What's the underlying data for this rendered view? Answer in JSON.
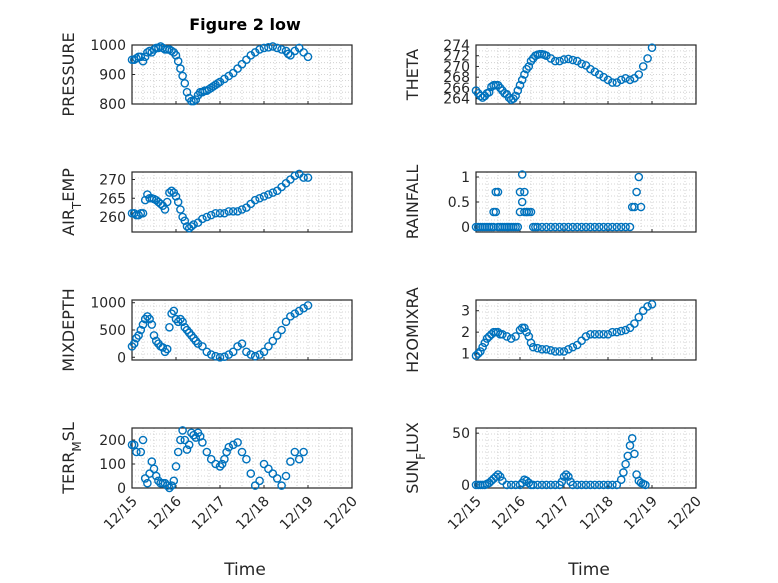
{
  "figure": {
    "title": "Figure 2 low",
    "marker_color": "#0072BD",
    "x_tick_labels": [
      "12/15",
      "12/16",
      "12/17",
      "12/18",
      "12/19",
      "12/20"
    ],
    "x_label": "Time"
  },
  "chart_data": [
    {
      "type": "scatter",
      "id": "pressure",
      "ylabel": "PRESSURE",
      "xlim": [
        0,
        5
      ],
      "ylim": [
        800,
        1000
      ],
      "yticks": [
        800,
        900,
        1000
      ],
      "xticks_shown": false,
      "title": "Figure 2 low",
      "x": [
        0.0,
        0.05,
        0.1,
        0.15,
        0.2,
        0.25,
        0.3,
        0.35,
        0.4,
        0.45,
        0.5,
        0.55,
        0.6,
        0.65,
        0.7,
        0.75,
        0.8,
        0.85,
        0.9,
        0.95,
        1.0,
        1.05,
        1.1,
        1.15,
        1.2,
        1.25,
        1.3,
        1.35,
        1.4,
        1.45,
        1.5,
        1.55,
        1.6,
        1.65,
        1.7,
        1.75,
        1.8,
        1.85,
        1.9,
        1.95,
        2.0,
        2.1,
        2.2,
        2.3,
        2.4,
        2.5,
        2.6,
        2.7,
        2.8,
        2.9,
        3.0,
        3.1,
        3.2,
        3.3,
        3.4,
        3.5,
        3.55,
        3.6,
        3.7,
        3.8,
        3.9,
        4.0
      ],
      "y": [
        950,
        950,
        955,
        960,
        960,
        945,
        960,
        975,
        980,
        975,
        985,
        990,
        990,
        995,
        990,
        985,
        985,
        985,
        980,
        975,
        965,
        945,
        920,
        895,
        870,
        840,
        820,
        810,
        810,
        815,
        830,
        840,
        840,
        845,
        845,
        850,
        855,
        860,
        865,
        870,
        875,
        885,
        895,
        905,
        920,
        935,
        950,
        965,
        975,
        985,
        990,
        992,
        995,
        990,
        985,
        980,
        970,
        965,
        980,
        990,
        975,
        960
      ]
    },
    {
      "type": "scatter",
      "id": "theta",
      "ylabel": "THETA",
      "xlim": [
        0,
        5
      ],
      "ylim": [
        263,
        274
      ],
      "yticks": [
        264,
        266,
        268,
        270,
        272,
        274
      ],
      "xticks_shown": false,
      "x": [
        0.0,
        0.05,
        0.1,
        0.15,
        0.2,
        0.25,
        0.3,
        0.35,
        0.4,
        0.45,
        0.5,
        0.55,
        0.6,
        0.65,
        0.7,
        0.75,
        0.8,
        0.85,
        0.9,
        0.95,
        1.0,
        1.05,
        1.1,
        1.15,
        1.2,
        1.25,
        1.3,
        1.35,
        1.4,
        1.45,
        1.5,
        1.55,
        1.6,
        1.7,
        1.8,
        1.9,
        2.0,
        2.1,
        2.2,
        2.3,
        2.4,
        2.5,
        2.6,
        2.7,
        2.8,
        2.9,
        3.0,
        3.1,
        3.2,
        3.3,
        3.4,
        3.5,
        3.6,
        3.7,
        3.8,
        3.9,
        4.0
      ],
      "y": [
        265.5,
        265.0,
        264.5,
        264.2,
        264.5,
        265.0,
        265.2,
        266.2,
        266.5,
        266.5,
        266.5,
        266.0,
        265.5,
        265.0,
        264.8,
        264.2,
        263.8,
        264.0,
        264.5,
        265.5,
        266.5,
        267.5,
        268.5,
        269.5,
        270.0,
        271.0,
        271.5,
        272.0,
        272.2,
        272.3,
        272.3,
        272.2,
        272.0,
        271.5,
        271.0,
        271.0,
        271.3,
        271.4,
        271.2,
        271.0,
        270.5,
        270.2,
        269.5,
        269.0,
        268.5,
        268.0,
        267.5,
        267.0,
        267.0,
        267.5,
        267.8,
        267.5,
        267.8,
        268.5,
        270.0,
        271.5,
        273.5
      ]
    },
    {
      "type": "scatter",
      "id": "air_temp",
      "ylabel": "AIR_TEMP",
      "xlim": [
        0,
        5
      ],
      "ylim": [
        256,
        272
      ],
      "yticks": [
        260,
        265,
        270
      ],
      "xticks_shown": false,
      "x": [
        0.0,
        0.05,
        0.1,
        0.15,
        0.2,
        0.25,
        0.3,
        0.35,
        0.4,
        0.45,
        0.5,
        0.55,
        0.6,
        0.65,
        0.7,
        0.75,
        0.8,
        0.85,
        0.9,
        0.95,
        1.0,
        1.05,
        1.1,
        1.15,
        1.2,
        1.25,
        1.3,
        1.35,
        1.4,
        1.5,
        1.6,
        1.7,
        1.8,
        1.9,
        2.0,
        2.1,
        2.2,
        2.3,
        2.4,
        2.5,
        2.6,
        2.7,
        2.8,
        2.9,
        3.0,
        3.1,
        3.2,
        3.3,
        3.4,
        3.5,
        3.6,
        3.7,
        3.8,
        3.9,
        4.0
      ],
      "y": [
        261.0,
        261.0,
        260.5,
        260.5,
        261.0,
        261.0,
        264.5,
        266.0,
        265.0,
        265.0,
        264.8,
        264.5,
        264.0,
        263.5,
        263.0,
        262.0,
        264.0,
        266.5,
        267.0,
        266.5,
        265.5,
        264.0,
        262.0,
        260.0,
        259.0,
        257.5,
        257.0,
        257.5,
        258.0,
        258.5,
        259.5,
        260.0,
        260.5,
        261.0,
        261.0,
        261.0,
        261.5,
        261.5,
        261.5,
        262.0,
        262.5,
        263.5,
        264.5,
        265.0,
        265.5,
        266.0,
        266.5,
        267.0,
        268.0,
        269.0,
        270.0,
        271.0,
        271.5,
        270.5,
        270.5
      ]
    },
    {
      "type": "scatter",
      "id": "rainfall",
      "ylabel": "RAINFALL",
      "xlim": [
        0,
        5
      ],
      "ylim": [
        -0.1,
        1.1
      ],
      "yticks": [
        0,
        0.5,
        1
      ],
      "xticks_shown": false,
      "x": [
        0.0,
        0.05,
        0.1,
        0.15,
        0.2,
        0.25,
        0.3,
        0.35,
        0.4,
        0.4,
        0.45,
        0.45,
        0.5,
        0.5,
        0.55,
        0.6,
        0.65,
        0.7,
        0.75,
        0.8,
        0.85,
        0.9,
        0.95,
        1.0,
        1.0,
        1.05,
        1.05,
        1.1,
        1.1,
        1.15,
        1.15,
        1.2,
        1.25,
        1.3,
        1.35,
        1.4,
        1.5,
        1.6,
        1.7,
        1.8,
        1.9,
        2.0,
        2.1,
        2.2,
        2.3,
        2.4,
        2.5,
        2.6,
        2.7,
        2.8,
        2.9,
        3.0,
        3.1,
        3.2,
        3.3,
        3.4,
        3.5,
        3.55,
        3.6,
        3.65,
        3.7,
        3.75
      ],
      "y": [
        0,
        0,
        0,
        0,
        0,
        0,
        0,
        0,
        0.3,
        0,
        0.7,
        0.3,
        0.7,
        0,
        0,
        0,
        0,
        0,
        0,
        0,
        0,
        0,
        0,
        0.7,
        0.3,
        1.05,
        0.5,
        0.7,
        0.3,
        0.3,
        0.3,
        0.3,
        0.3,
        0,
        0,
        0,
        0,
        0,
        0,
        0,
        0,
        0,
        0,
        0,
        0,
        0,
        0,
        0,
        0,
        0,
        0,
        0,
        0,
        0,
        0,
        0,
        0,
        0.4,
        0.4,
        0.7,
        1.0,
        0.4
      ]
    },
    {
      "type": "scatter",
      "id": "mixdepth",
      "ylabel": "MIXDEPTH",
      "xlim": [
        0,
        5
      ],
      "ylim": [
        -50,
        1050
      ],
      "yticks": [
        0,
        500,
        1000
      ],
      "xticks_shown": false,
      "x": [
        0.0,
        0.05,
        0.1,
        0.15,
        0.2,
        0.25,
        0.3,
        0.35,
        0.4,
        0.45,
        0.5,
        0.55,
        0.6,
        0.65,
        0.7,
        0.75,
        0.8,
        0.85,
        0.9,
        0.95,
        1.0,
        1.05,
        1.1,
        1.15,
        1.2,
        1.25,
        1.3,
        1.35,
        1.4,
        1.45,
        1.5,
        1.6,
        1.7,
        1.8,
        1.9,
        2.0,
        2.1,
        2.2,
        2.3,
        2.4,
        2.5,
        2.6,
        2.7,
        2.8,
        2.9,
        3.0,
        3.1,
        3.2,
        3.3,
        3.4,
        3.5,
        3.6,
        3.7,
        3.8,
        3.9,
        4.0
      ],
      "y": [
        200,
        250,
        350,
        400,
        500,
        600,
        700,
        750,
        700,
        600,
        400,
        300,
        250,
        200,
        180,
        100,
        150,
        550,
        800,
        850,
        700,
        650,
        700,
        650,
        550,
        500,
        450,
        400,
        350,
        300,
        250,
        200,
        100,
        50,
        20,
        0,
        10,
        50,
        100,
        200,
        250,
        100,
        50,
        20,
        50,
        100,
        200,
        300,
        400,
        500,
        650,
        750,
        800,
        850,
        900,
        950
      ]
    },
    {
      "type": "scatter",
      "id": "h2omixra",
      "ylabel": "H2OMIXRA",
      "xlim": [
        0,
        5
      ],
      "ylim": [
        0.7,
        3.5
      ],
      "yticks": [
        1,
        2,
        3
      ],
      "xticks_shown": false,
      "x": [
        0.0,
        0.05,
        0.1,
        0.15,
        0.2,
        0.25,
        0.3,
        0.35,
        0.4,
        0.45,
        0.5,
        0.55,
        0.6,
        0.7,
        0.8,
        0.9,
        1.0,
        1.05,
        1.1,
        1.15,
        1.2,
        1.25,
        1.3,
        1.4,
        1.5,
        1.6,
        1.7,
        1.8,
        1.9,
        2.0,
        2.1,
        2.2,
        2.3,
        2.4,
        2.5,
        2.6,
        2.7,
        2.8,
        2.9,
        3.0,
        3.1,
        3.2,
        3.3,
        3.4,
        3.5,
        3.6,
        3.7,
        3.8,
        3.9,
        4.0
      ],
      "y": [
        0.9,
        1.0,
        1.1,
        1.3,
        1.5,
        1.7,
        1.8,
        1.9,
        2.0,
        2.0,
        2.0,
        1.9,
        1.9,
        1.8,
        1.7,
        1.8,
        2.1,
        2.2,
        2.2,
        2.0,
        1.8,
        1.5,
        1.3,
        1.25,
        1.2,
        1.2,
        1.15,
        1.1,
        1.1,
        1.1,
        1.2,
        1.3,
        1.4,
        1.6,
        1.8,
        1.9,
        1.9,
        1.9,
        1.9,
        1.9,
        2.0,
        2.0,
        2.05,
        2.1,
        2.2,
        2.4,
        2.7,
        3.0,
        3.2,
        3.3
      ]
    },
    {
      "type": "scatter",
      "id": "terr_msl",
      "ylabel": "TERR_MSL",
      "xlim": [
        0,
        5
      ],
      "ylim": [
        0,
        250
      ],
      "yticks": [
        0,
        100,
        200
      ],
      "xticks_shown": true,
      "x": [
        0.0,
        0.05,
        0.1,
        0.2,
        0.25,
        0.3,
        0.35,
        0.4,
        0.45,
        0.5,
        0.55,
        0.6,
        0.65,
        0.7,
        0.75,
        0.8,
        0.85,
        0.9,
        0.95,
        1.0,
        1.05,
        1.1,
        1.15,
        1.2,
        1.25,
        1.3,
        1.35,
        1.4,
        1.45,
        1.5,
        1.55,
        1.6,
        1.7,
        1.8,
        1.9,
        2.0,
        2.05,
        2.1,
        2.15,
        2.2,
        2.3,
        2.4,
        2.5,
        2.6,
        2.7,
        2.8,
        2.9,
        3.0,
        3.1,
        3.2,
        3.3,
        3.4,
        3.5,
        3.6,
        3.7,
        3.8,
        3.9
      ],
      "y": [
        180,
        180,
        150,
        150,
        200,
        40,
        20,
        60,
        110,
        80,
        50,
        30,
        20,
        20,
        20,
        10,
        0,
        10,
        30,
        90,
        150,
        200,
        240,
        200,
        160,
        180,
        230,
        220,
        210,
        230,
        215,
        190,
        150,
        120,
        100,
        90,
        100,
        120,
        150,
        170,
        180,
        190,
        150,
        120,
        60,
        10,
        30,
        100,
        80,
        60,
        40,
        10,
        50,
        110,
        150,
        120,
        150
      ]
    },
    {
      "type": "scatter",
      "id": "sun_flux",
      "ylabel": "SUN_FLUX",
      "xlim": [
        0,
        5
      ],
      "ylim": [
        -3,
        55
      ],
      "yticks": [
        0,
        50
      ],
      "xticks_shown": true,
      "x": [
        0.0,
        0.05,
        0.1,
        0.15,
        0.2,
        0.25,
        0.3,
        0.35,
        0.4,
        0.45,
        0.5,
        0.55,
        0.6,
        0.7,
        0.8,
        0.9,
        1.0,
        1.05,
        1.1,
        1.15,
        1.2,
        1.25,
        1.3,
        1.4,
        1.5,
        1.6,
        1.7,
        1.8,
        1.9,
        1.95,
        2.0,
        2.05,
        2.1,
        2.15,
        2.2,
        2.3,
        2.4,
        2.5,
        2.6,
        2.7,
        2.8,
        2.9,
        3.0,
        3.1,
        3.2,
        3.3,
        3.35,
        3.4,
        3.45,
        3.5,
        3.55,
        3.6,
        3.65,
        3.7,
        3.75,
        3.8,
        3.85
      ],
      "y": [
        0,
        0,
        0,
        0,
        0,
        1,
        2,
        4,
        6,
        8,
        10,
        8,
        4,
        0,
        0,
        0,
        0,
        2,
        5,
        4,
        2,
        0,
        0,
        0,
        0,
        0,
        0,
        0,
        0,
        3,
        8,
        10,
        8,
        3,
        0,
        0,
        0,
        0,
        0,
        0,
        0,
        0,
        0,
        0,
        0,
        5,
        12,
        20,
        28,
        38,
        45,
        30,
        10,
        4,
        2,
        1,
        0
      ]
    }
  ]
}
